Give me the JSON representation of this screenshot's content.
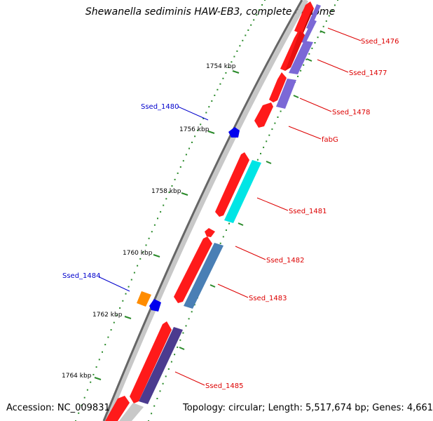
{
  "title": "Shewanella sediminis HAW-EB3, complete genome",
  "accession": "Accession: NC_009831",
  "topology": "Topology: circular; Length: 5,517,674 bp; Genes: 4,661",
  "colors": {
    "backbone_dark": "#666666",
    "backbone_light": "#c8c8c8",
    "tick": "#2a8a2a",
    "gene_red": "#ff1a1a",
    "cyan": "#00e5e5",
    "purple": "#7b68d6",
    "steel": "#4a7fb5",
    "dark_purple": "#4b3b8f",
    "orange": "#ff8c00",
    "blue": "#0000ee",
    "label_red": "#dd0000",
    "label_blue": "#0000cc",
    "gray": "#c8c8c8"
  },
  "kbp_labels": [
    "1754 kbp",
    "1756 kbp",
    "1758 kbp",
    "1760 kbp",
    "1762 kbp",
    "1764 kbp"
  ],
  "gene_labels": {
    "right": [
      "Ssed_1476",
      "Ssed_1477",
      "Ssed_1478",
      "fabG",
      "Ssed_1481",
      "Ssed_1482",
      "Ssed_1483",
      "Ssed_1485"
    ],
    "left": [
      "Ssed_1480",
      "Ssed_1484"
    ]
  }
}
